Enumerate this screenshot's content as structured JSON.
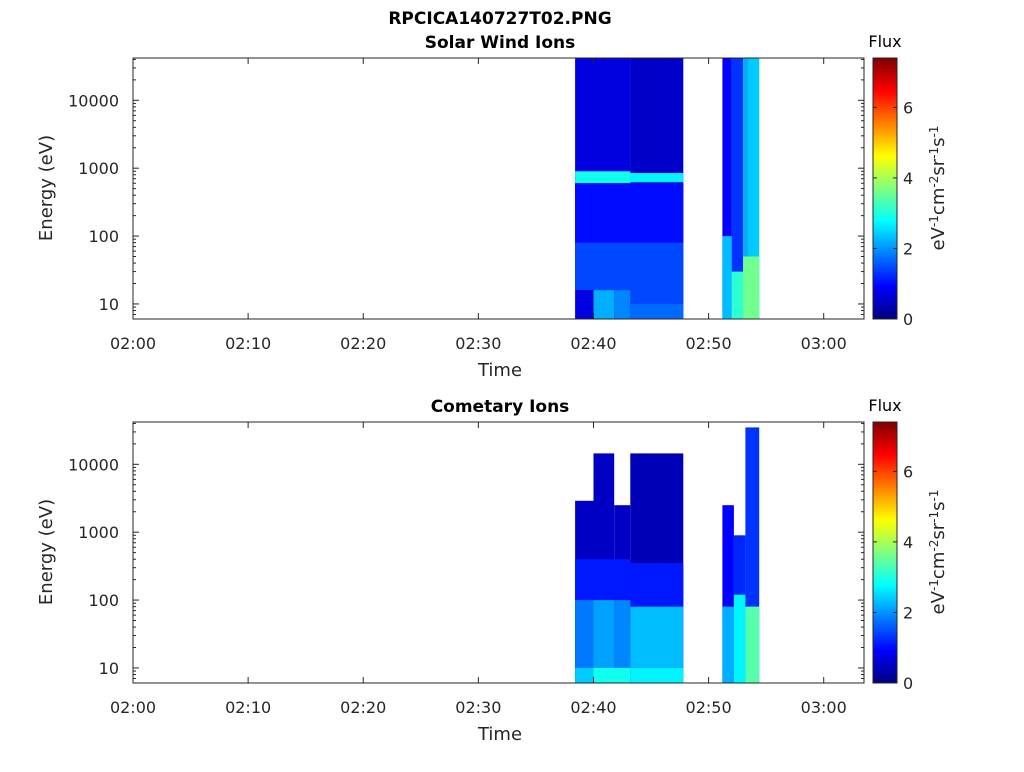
{
  "figure": {
    "title": "RPCICA140727T02.PNG"
  },
  "colormap": {
    "name": "jet",
    "stops": [
      "#00007f",
      "#0000ff",
      "#007fff",
      "#00ffff",
      "#7fff7f",
      "#ffff00",
      "#ff7f00",
      "#ff0000",
      "#7f0000"
    ]
  },
  "chart_data": [
    {
      "type": "heatmap",
      "title": "Solar Wind Ions",
      "xlabel": "Time",
      "ylabel": "Energy (eV)",
      "x_ticks": [
        "02:00",
        "02:10",
        "02:20",
        "02:30",
        "02:40",
        "02:50",
        "03:00"
      ],
      "x_tick_minutes": [
        0,
        10,
        20,
        30,
        40,
        50,
        60
      ],
      "xlim_minutes": [
        0,
        63.5
      ],
      "yscale": "log",
      "ylim": [
        6,
        42000
      ],
      "y_ticks": [
        "10",
        "100",
        "1000",
        "10000"
      ],
      "y_tick_values": [
        10,
        100,
        1000,
        10000
      ],
      "colorbar": {
        "title": "Flux",
        "label": "eV-1cm-2sr-1s-1",
        "range": [
          0,
          7.4
        ],
        "ticks": [
          "0",
          "2",
          "4",
          "6"
        ],
        "tick_values": [
          0,
          2,
          4,
          6
        ]
      },
      "blocks": [
        {
          "t": [
            38.4,
            43.2
          ],
          "e": [
            6,
            42000
          ],
          "flux": 0.7
        },
        {
          "t": [
            43.2,
            47.8
          ],
          "e": [
            6,
            42000
          ],
          "flux": 0.55
        },
        {
          "t": [
            38.4,
            43.2
          ],
          "e": [
            600,
            900
          ],
          "flux": 2.9
        },
        {
          "t": [
            43.2,
            47.8
          ],
          "e": [
            620,
            850
          ],
          "flux": 2.7
        },
        {
          "t": [
            38.4,
            43.2
          ],
          "e": [
            80,
            600
          ],
          "flux": 1.0
        },
        {
          "t": [
            43.2,
            47.8
          ],
          "e": [
            80,
            600
          ],
          "flux": 1.0
        },
        {
          "t": [
            38.4,
            43.2
          ],
          "e": [
            16,
            80
          ],
          "flux": 1.45
        },
        {
          "t": [
            43.2,
            47.8
          ],
          "e": [
            10,
            80
          ],
          "flux": 1.45
        },
        {
          "t": [
            40.0,
            41.8
          ],
          "e": [
            6,
            16
          ],
          "flux": 2.2
        },
        {
          "t": [
            41.8,
            43.2
          ],
          "e": [
            6,
            16
          ],
          "flux": 1.9
        },
        {
          "t": [
            43.2,
            47.8
          ],
          "e": [
            6,
            10
          ],
          "flux": 1.7
        },
        {
          "t": [
            51.2,
            52.0
          ],
          "e": [
            6,
            42000
          ],
          "flux": 0.9
        },
        {
          "t": [
            52.0,
            53.0
          ],
          "e": [
            6,
            42000
          ],
          "flux": 1.3
        },
        {
          "t": [
            53.0,
            53.5
          ],
          "e": [
            6,
            42000
          ],
          "flux": 2.2
        },
        {
          "t": [
            53.5,
            54.4
          ],
          "e": [
            6,
            42000
          ],
          "flux": 2.4
        },
        {
          "t": [
            51.2,
            52.0
          ],
          "e": [
            6,
            100
          ],
          "flux": 2.3
        },
        {
          "t": [
            52.0,
            53.0
          ],
          "e": [
            6,
            30
          ],
          "flux": 3.1
        },
        {
          "t": [
            53.0,
            54.4
          ],
          "e": [
            6,
            50
          ],
          "flux": 3.6
        }
      ]
    },
    {
      "type": "heatmap",
      "title": "Cometary Ions",
      "xlabel": "Time",
      "ylabel": "Energy (eV)",
      "x_ticks": [
        "02:00",
        "02:10",
        "02:20",
        "02:30",
        "02:40",
        "02:50",
        "03:00"
      ],
      "x_tick_minutes": [
        0,
        10,
        20,
        30,
        40,
        50,
        60
      ],
      "xlim_minutes": [
        0,
        63.5
      ],
      "yscale": "log",
      "ylim": [
        6,
        42000
      ],
      "y_ticks": [
        "10",
        "100",
        "1000",
        "10000"
      ],
      "y_tick_values": [
        10,
        100,
        1000,
        10000
      ],
      "colorbar": {
        "title": "Flux",
        "label": "eV-1cm-2sr-1s-1",
        "range": [
          0,
          7.4
        ],
        "ticks": [
          "0",
          "2",
          "4",
          "6"
        ],
        "tick_values": [
          0,
          2,
          4,
          6
        ]
      },
      "blocks": [
        {
          "t": [
            38.4,
            40.0
          ],
          "e": [
            6,
            2900
          ],
          "flux": 0.5
        },
        {
          "t": [
            40.0,
            41.8
          ],
          "e": [
            6,
            14500
          ],
          "flux": 0.5
        },
        {
          "t": [
            41.8,
            43.2
          ],
          "e": [
            6,
            2500
          ],
          "flux": 0.5
        },
        {
          "t": [
            43.2,
            47.8
          ],
          "e": [
            6,
            14500
          ],
          "flux": 0.4
        },
        {
          "t": [
            38.4,
            43.2
          ],
          "e": [
            100,
            400
          ],
          "flux": 1.1
        },
        {
          "t": [
            43.2,
            47.8
          ],
          "e": [
            80,
            350
          ],
          "flux": 1.1
        },
        {
          "t": [
            38.4,
            40.0
          ],
          "e": [
            10,
            100
          ],
          "flux": 1.8
        },
        {
          "t": [
            40.0,
            41.8
          ],
          "e": [
            10,
            100
          ],
          "flux": 2.1
        },
        {
          "t": [
            41.8,
            43.2
          ],
          "e": [
            10,
            100
          ],
          "flux": 1.9
        },
        {
          "t": [
            43.2,
            47.8
          ],
          "e": [
            10,
            80
          ],
          "flux": 2.3
        },
        {
          "t": [
            38.4,
            40.0
          ],
          "e": [
            6,
            10
          ],
          "flux": 2.4
        },
        {
          "t": [
            40.0,
            43.2
          ],
          "e": [
            6,
            10
          ],
          "flux": 2.9
        },
        {
          "t": [
            43.2,
            47.8
          ],
          "e": [
            6,
            10
          ],
          "flux": 2.7
        },
        {
          "t": [
            51.2,
            52.2
          ],
          "e": [
            6,
            2500
          ],
          "flux": 0.9
        },
        {
          "t": [
            52.2,
            53.2
          ],
          "e": [
            6,
            900
          ],
          "flux": 1.2
        },
        {
          "t": [
            53.2,
            54.4
          ],
          "e": [
            6,
            35000
          ],
          "flux": 1.3
        },
        {
          "t": [
            51.2,
            52.2
          ],
          "e": [
            6,
            80
          ],
          "flux": 2.2
        },
        {
          "t": [
            52.2,
            53.2
          ],
          "e": [
            6,
            120
          ],
          "flux": 2.7
        },
        {
          "t": [
            53.2,
            54.4
          ],
          "e": [
            6,
            80
          ],
          "flux": 3.4
        }
      ]
    }
  ]
}
